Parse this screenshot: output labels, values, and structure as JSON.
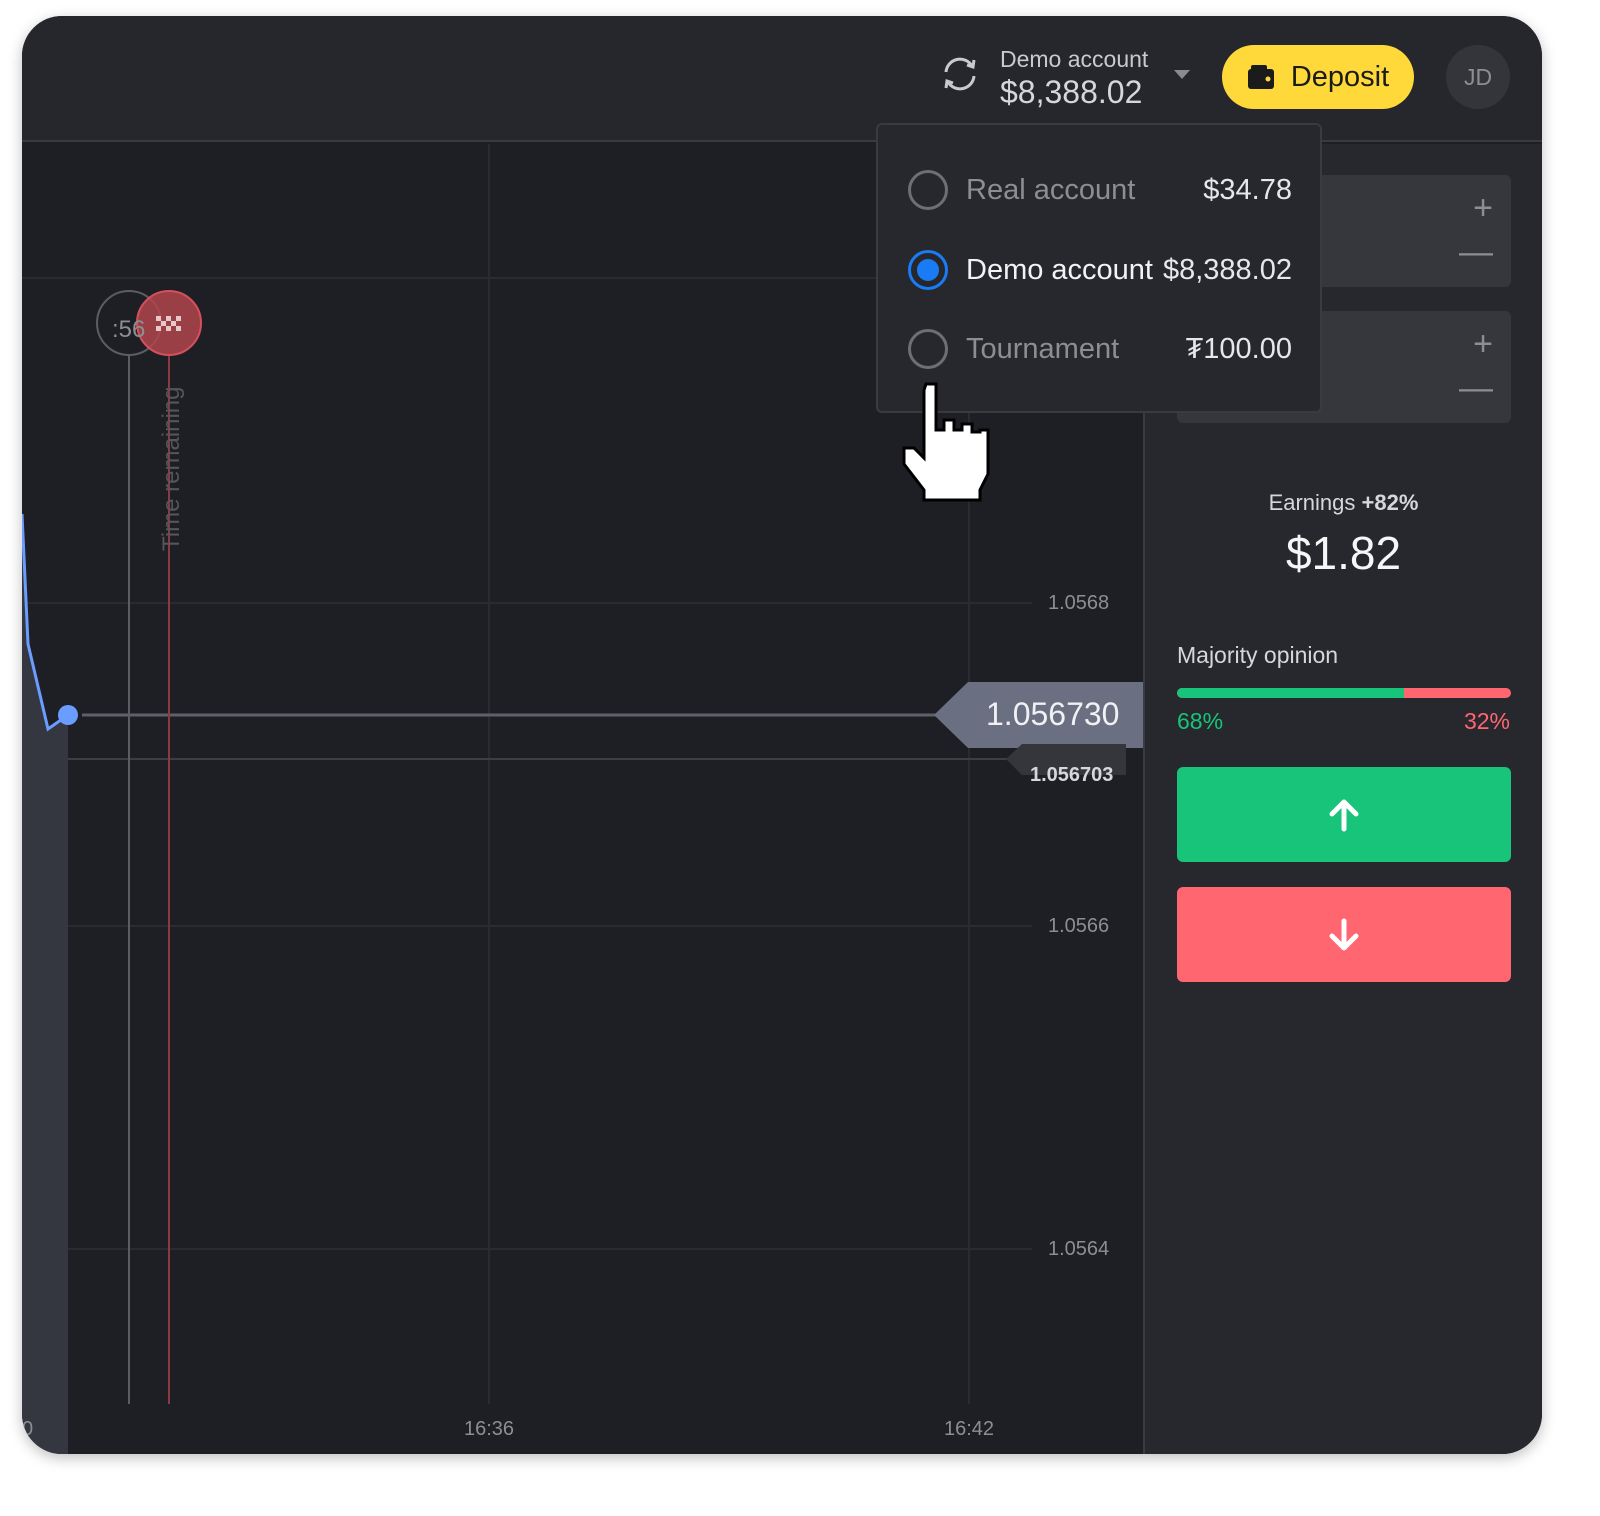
{
  "header": {
    "account_label": "Demo account",
    "account_balance": "$8,388.02",
    "deposit_label": "Deposit",
    "avatar_initials": "JD"
  },
  "account_menu": {
    "options": [
      {
        "name": "Real account",
        "balance": "$34.78",
        "selected": false
      },
      {
        "name": "Demo account",
        "balance": "$8,388.02",
        "selected": true
      },
      {
        "name": "Tournament",
        "balance": "₮100.00",
        "selected": false
      }
    ]
  },
  "chart": {
    "current_price": "1.056730",
    "open_price": "1.056703",
    "timer": ":56",
    "time_remaining_label": "Time remaining",
    "y_ticks": [
      "1.0568",
      "1.0566",
      "1.0564"
    ],
    "x_ticks": [
      "0",
      "16:36",
      "16:42"
    ],
    "line_color": "#6b9cff"
  },
  "sidebar": {
    "earnings_label": "Earnings",
    "earnings_pct": "+82%",
    "earnings_value": "$1.82",
    "majority_label": "Majority opinion",
    "up_pct": "68%",
    "down_pct": "32%",
    "up_fraction": 0.68,
    "colors": {
      "up": "#17c47a",
      "down": "#ff6670",
      "accent": "#ffd93a"
    }
  }
}
